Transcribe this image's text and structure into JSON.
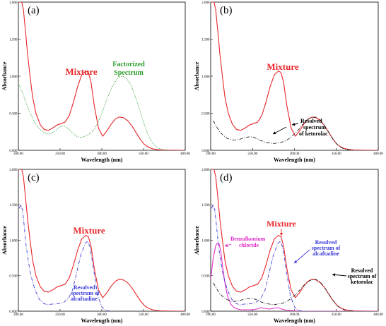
{
  "chart_data": [
    {
      "type": "line",
      "panel_label": "(a)",
      "xlabel": "Wavelength (nm)",
      "ylabel": "Absorbance",
      "xlim": [
        200,
        400
      ],
      "ylim": [
        0,
        2
      ],
      "x_ticks": [
        "200.00",
        "250.00",
        "300.00",
        "350.00",
        "400.00"
      ],
      "y_ticks": [
        "0.000",
        "0.500",
        "1.000",
        "1.500",
        "2.000"
      ],
      "grid": false,
      "series": [
        {
          "name": "Mixture",
          "color": "#e8262a",
          "dash": "solid",
          "x": [
            200,
            204,
            206,
            209,
            211,
            214,
            217,
            221,
            226,
            231,
            236,
            241,
            246,
            251,
            256,
            261,
            266,
            271,
            276,
            281,
            284,
            287,
            291,
            296,
            301,
            306,
            311,
            316,
            321,
            326,
            331,
            336,
            341,
            346,
            351,
            356,
            361,
            366,
            371,
            381,
            391,
            400
          ],
          "y": [
            2.0,
            2.0,
            1.9,
            1.55,
            1.3,
            1.0,
            0.72,
            0.5,
            0.35,
            0.28,
            0.27,
            0.3,
            0.34,
            0.36,
            0.38,
            0.47,
            0.65,
            0.86,
            1.02,
            1.07,
            1.05,
            0.92,
            0.6,
            0.3,
            0.19,
            0.26,
            0.35,
            0.42,
            0.45,
            0.44,
            0.4,
            0.33,
            0.24,
            0.15,
            0.08,
            0.04,
            0.02,
            0.01,
            0.005,
            0.002,
            0.001,
            0.0
          ]
        },
        {
          "name": "Factorized Spectrum",
          "color": "#2e9e2e",
          "dash": "dotted",
          "x": [
            200,
            205,
            210,
            215,
            220,
            225,
            230,
            235,
            240,
            245,
            250,
            255,
            260,
            265,
            270,
            275,
            280,
            285,
            290,
            295,
            300,
            305,
            310,
            315,
            320,
            325,
            330,
            335,
            340,
            345,
            350,
            355,
            360,
            365,
            370,
            375,
            380
          ],
          "y": [
            0.9,
            0.78,
            0.62,
            0.48,
            0.37,
            0.29,
            0.24,
            0.22,
            0.23,
            0.27,
            0.32,
            0.33,
            0.29,
            0.23,
            0.19,
            0.17,
            0.19,
            0.22,
            0.27,
            0.36,
            0.5,
            0.66,
            0.8,
            0.91,
            0.98,
            1.0,
            0.97,
            0.88,
            0.73,
            0.56,
            0.38,
            0.22,
            0.11,
            0.05,
            0.02,
            0.008,
            0.002
          ]
        }
      ],
      "annotations": [
        {
          "text": "Mixture",
          "color": "#e8262a"
        },
        {
          "text": "Factorized",
          "color": "#2e9e2e"
        },
        {
          "text": "Spectrum",
          "color": "#2e9e2e"
        }
      ]
    },
    {
      "type": "line",
      "panel_label": "(b)",
      "xlabel": "Wavelength (nm)",
      "ylabel": "Absorbance",
      "xlim": [
        200,
        400
      ],
      "ylim": [
        0,
        2
      ],
      "x_ticks": [
        "200.00",
        "250.00",
        "300.00",
        "350.00",
        "400.00"
      ],
      "y_ticks": [
        "0.000",
        "0.500",
        "1.000",
        "1.500",
        "2.000"
      ],
      "grid": false,
      "series": [
        {
          "name": "Mixture",
          "color": "#e8262a",
          "dash": "solid",
          "x": [
            200,
            204,
            206,
            209,
            211,
            214,
            217,
            221,
            226,
            231,
            236,
            241,
            246,
            251,
            256,
            261,
            266,
            271,
            276,
            281,
            284,
            287,
            291,
            296,
            301,
            306,
            311,
            316,
            321,
            326,
            331,
            336,
            341,
            346,
            351,
            356,
            361,
            366,
            371,
            381,
            391,
            400
          ],
          "y": [
            2.0,
            2.0,
            1.9,
            1.55,
            1.3,
            1.0,
            0.72,
            0.5,
            0.35,
            0.28,
            0.27,
            0.3,
            0.34,
            0.36,
            0.38,
            0.47,
            0.65,
            0.86,
            1.02,
            1.07,
            1.05,
            0.92,
            0.6,
            0.3,
            0.19,
            0.26,
            0.35,
            0.42,
            0.45,
            0.44,
            0.4,
            0.33,
            0.24,
            0.15,
            0.08,
            0.04,
            0.02,
            0.01,
            0.005,
            0.002,
            0.001,
            0.0
          ]
        },
        {
          "name": "Resolved spectrum of ketorolac",
          "color": "#222222",
          "dash": "dashdot",
          "x": [
            203,
            206,
            210,
            215,
            220,
            225,
            230,
            235,
            240,
            245,
            250,
            255,
            260,
            265,
            270,
            275,
            280,
            285,
            290,
            295,
            300,
            305,
            310,
            315,
            320,
            325,
            330,
            335,
            340,
            345,
            350,
            355,
            360,
            365,
            370
          ],
          "y": [
            0.4,
            0.34,
            0.26,
            0.2,
            0.16,
            0.14,
            0.14,
            0.15,
            0.17,
            0.18,
            0.18,
            0.16,
            0.13,
            0.11,
            0.1,
            0.09,
            0.1,
            0.11,
            0.13,
            0.17,
            0.22,
            0.28,
            0.35,
            0.41,
            0.44,
            0.45,
            0.42,
            0.35,
            0.26,
            0.17,
            0.09,
            0.04,
            0.015,
            0.005,
            0.0
          ]
        }
      ],
      "annotations": [
        {
          "text": "Mixture",
          "color": "#e8262a"
        },
        {
          "text": "Resolved",
          "color": "#000000"
        },
        {
          "text": "spectrum",
          "color": "#000000"
        },
        {
          "text": "of ketorolac",
          "color": "#000000"
        }
      ]
    },
    {
      "type": "line",
      "panel_label": "(c)",
      "xlabel": "Wavelength (nm)",
      "ylabel": "Absorbance",
      "xlim": [
        200,
        400
      ],
      "ylim": [
        0,
        2
      ],
      "x_ticks": [
        "200.00",
        "250.00",
        "300.00",
        "350.00",
        "400.00"
      ],
      "y_ticks": [
        "0.000",
        "0.500",
        "1.000",
        "1.500",
        "2.000"
      ],
      "grid": false,
      "series": [
        {
          "name": "Mixture",
          "color": "#e8262a",
          "dash": "solid",
          "x": [
            200,
            204,
            206,
            209,
            211,
            214,
            217,
            221,
            226,
            231,
            236,
            241,
            246,
            251,
            256,
            261,
            266,
            271,
            276,
            281,
            284,
            287,
            291,
            296,
            301,
            306,
            311,
            316,
            321,
            326,
            331,
            336,
            341,
            346,
            351,
            356,
            361,
            366,
            371,
            381,
            391,
            400
          ],
          "y": [
            2.0,
            2.0,
            1.9,
            1.55,
            1.3,
            1.0,
            0.72,
            0.5,
            0.35,
            0.28,
            0.27,
            0.3,
            0.34,
            0.36,
            0.38,
            0.47,
            0.65,
            0.86,
            1.02,
            1.07,
            1.05,
            0.92,
            0.6,
            0.3,
            0.19,
            0.26,
            0.35,
            0.42,
            0.45,
            0.44,
            0.4,
            0.33,
            0.24,
            0.15,
            0.08,
            0.04,
            0.02,
            0.01,
            0.005,
            0.002,
            0.001,
            0.0
          ]
        },
        {
          "name": "Resolved spectrum of alcaftadine",
          "color": "#3a3ad8",
          "dash": "dashdot",
          "x": [
            201,
            203,
            205,
            207,
            209,
            212,
            215,
            220,
            225,
            230,
            235,
            240,
            245,
            250,
            255,
            260,
            265,
            270,
            275,
            280,
            283,
            286,
            290,
            295,
            300,
            305,
            310,
            315
          ],
          "y": [
            1.45,
            1.5,
            1.42,
            1.2,
            0.95,
            0.7,
            0.5,
            0.3,
            0.17,
            0.11,
            0.09,
            0.1,
            0.1,
            0.11,
            0.13,
            0.18,
            0.3,
            0.55,
            0.8,
            0.95,
            0.99,
            0.9,
            0.6,
            0.22,
            0.06,
            0.01,
            0.0,
            0.0
          ]
        }
      ],
      "annotations": [
        {
          "text": "Mixture",
          "color": "#e8262a"
        },
        {
          "text": "Resolved",
          "color": "#3a3ad8"
        },
        {
          "text": "spectrum of",
          "color": "#3a3ad8"
        },
        {
          "text": "alcaftadine",
          "color": "#3a3ad8"
        }
      ]
    },
    {
      "type": "line",
      "panel_label": "(d)",
      "xlabel": "Wavelength (nm)",
      "ylabel": "Absorbance",
      "xlim": [
        200,
        400
      ],
      "ylim": [
        0,
        2
      ],
      "x_ticks": [
        "200.00",
        "250.00",
        "300.00",
        "350.00",
        "400.00"
      ],
      "y_ticks": [
        "0.000",
        "0.500",
        "1.000",
        "1.500",
        "2.000"
      ],
      "grid": false,
      "series": [
        {
          "name": "Mixture",
          "color": "#e8262a",
          "dash": "solid",
          "x": [
            200,
            204,
            206,
            209,
            211,
            214,
            217,
            221,
            226,
            231,
            236,
            241,
            246,
            251,
            256,
            261,
            266,
            271,
            276,
            281,
            284,
            287,
            291,
            296,
            301,
            306,
            311,
            316,
            321,
            326,
            331,
            336,
            341,
            346,
            351,
            356,
            361,
            366,
            371,
            381,
            391,
            400
          ],
          "y": [
            2.0,
            2.0,
            1.9,
            1.55,
            1.3,
            1.0,
            0.72,
            0.5,
            0.35,
            0.28,
            0.27,
            0.3,
            0.34,
            0.36,
            0.38,
            0.47,
            0.65,
            0.86,
            1.02,
            1.07,
            1.05,
            0.92,
            0.6,
            0.3,
            0.19,
            0.26,
            0.35,
            0.42,
            0.45,
            0.44,
            0.4,
            0.33,
            0.24,
            0.15,
            0.08,
            0.04,
            0.02,
            0.01,
            0.005,
            0.002,
            0.001,
            0.0
          ]
        },
        {
          "name": "Benzalkonium chloride",
          "color": "#e030c8",
          "dash": "solid",
          "x": [
            200,
            203,
            206,
            208,
            210,
            212,
            214,
            217,
            220,
            224,
            228,
            232,
            236,
            240,
            245,
            250,
            255,
            260,
            265,
            270,
            275,
            280,
            285,
            290,
            295,
            300,
            310,
            320,
            340,
            360,
            400
          ],
          "y": [
            0.45,
            0.75,
            0.92,
            0.96,
            0.95,
            0.85,
            0.65,
            0.4,
            0.22,
            0.1,
            0.05,
            0.03,
            0.02,
            0.02,
            0.02,
            0.02,
            0.03,
            0.05,
            0.04,
            0.03,
            0.04,
            0.05,
            0.03,
            0.015,
            0.01,
            0.005,
            0.0,
            0.0,
            0.0,
            0.0,
            0.0
          ]
        },
        {
          "name": "Resolved spectrum of alcaftadine",
          "color": "#3a3ad8",
          "dash": "dashdot",
          "x": [
            201,
            203,
            205,
            207,
            209,
            212,
            215,
            220,
            225,
            230,
            235,
            240,
            245,
            250,
            255,
            260,
            265,
            270,
            275,
            280,
            283,
            286,
            290,
            295,
            300,
            305,
            310,
            315
          ],
          "y": [
            1.45,
            1.5,
            1.42,
            1.2,
            0.95,
            0.7,
            0.5,
            0.3,
            0.17,
            0.11,
            0.09,
            0.1,
            0.1,
            0.11,
            0.13,
            0.18,
            0.3,
            0.55,
            0.8,
            0.95,
            0.99,
            0.9,
            0.6,
            0.22,
            0.06,
            0.01,
            0.0,
            0.0
          ]
        },
        {
          "name": "Resolved spectrum of ketorolac",
          "color": "#222222",
          "dash": "dashdot",
          "x": [
            203,
            206,
            210,
            215,
            220,
            225,
            230,
            235,
            240,
            245,
            250,
            255,
            260,
            265,
            270,
            275,
            280,
            285,
            290,
            295,
            300,
            305,
            310,
            315,
            320,
            325,
            330,
            335,
            340,
            345,
            350,
            355,
            360,
            365,
            370
          ],
          "y": [
            0.4,
            0.34,
            0.26,
            0.2,
            0.16,
            0.14,
            0.14,
            0.15,
            0.17,
            0.18,
            0.18,
            0.16,
            0.13,
            0.11,
            0.1,
            0.09,
            0.1,
            0.11,
            0.13,
            0.17,
            0.22,
            0.28,
            0.35,
            0.41,
            0.44,
            0.45,
            0.42,
            0.35,
            0.26,
            0.17,
            0.09,
            0.04,
            0.015,
            0.005,
            0.0
          ]
        }
      ],
      "annotations": [
        {
          "text": "Mixture",
          "color": "#e8262a"
        },
        {
          "text": "Benzalkonium",
          "color": "#e030c8"
        },
        {
          "text": "chloride",
          "color": "#e030c8"
        },
        {
          "text": "Resolved",
          "color": "#3a3ad8"
        },
        {
          "text": "spectrum of",
          "color": "#3a3ad8"
        },
        {
          "text": "alcaftadine",
          "color": "#3a3ad8"
        },
        {
          "text": "Resolved",
          "color": "#000000"
        },
        {
          "text": "spectrum of",
          "color": "#000000"
        },
        {
          "text": "ketorolac",
          "color": "#000000"
        }
      ]
    }
  ]
}
